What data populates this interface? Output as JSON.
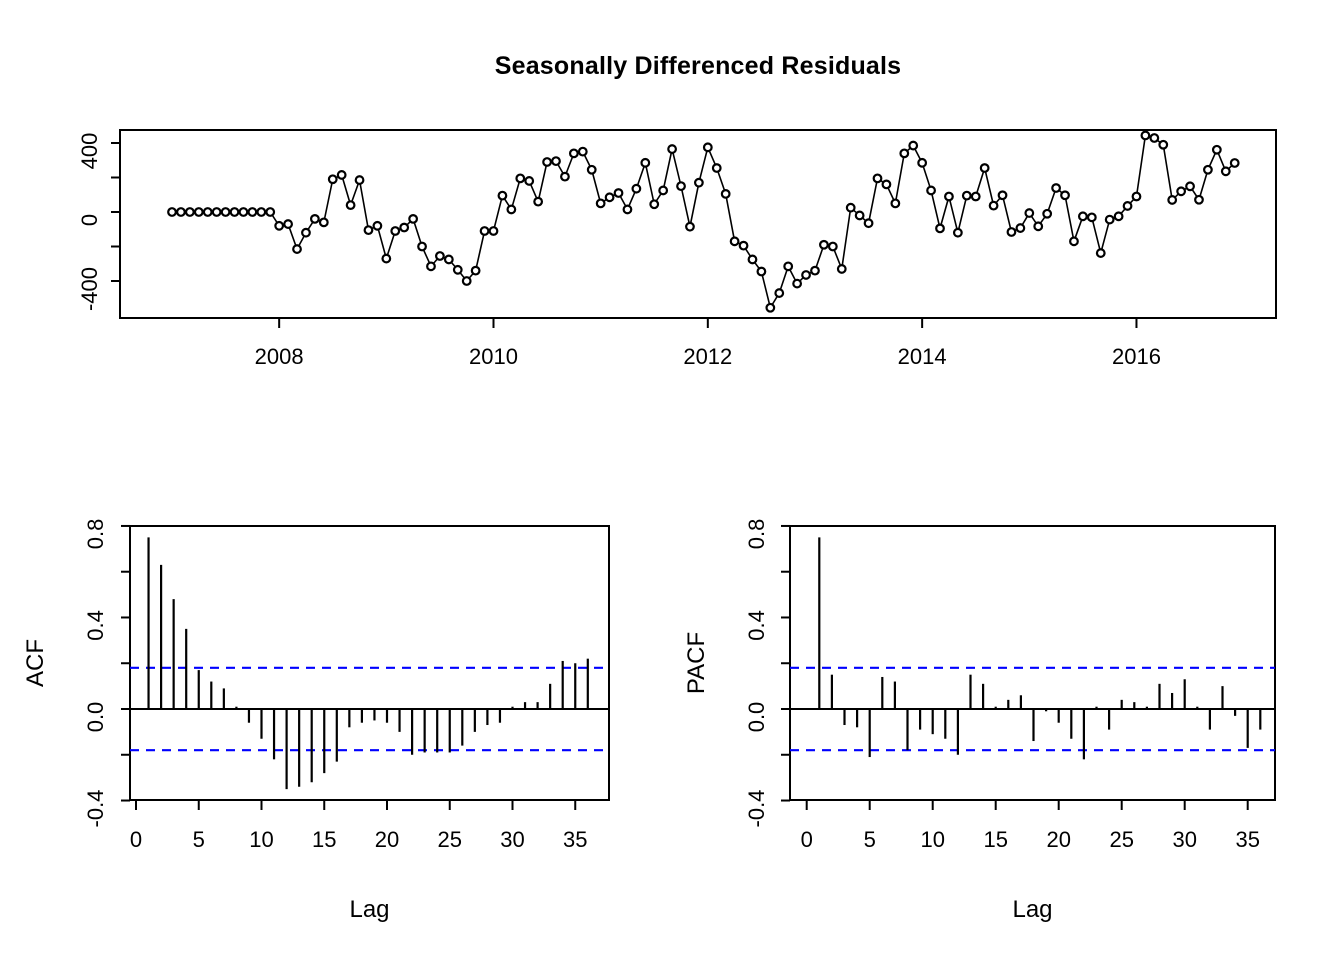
{
  "page": {
    "background": "#ffffff",
    "text_color": "#000000",
    "conf_band_color": "#0000ff"
  },
  "chart_data": [
    {
      "type": "line",
      "name": "residuals-timeseries",
      "title": "Seasonally Differenced Residuals",
      "xlabel": "",
      "ylabel": "",
      "marker": "open-circle",
      "line_color": "#000000",
      "x_start": "2007-01",
      "x_end": "2016-12",
      "x_frequency": "monthly",
      "x_range_years": [
        2007,
        2017
      ],
      "ylim": [
        -600,
        480
      ],
      "x_tick_labels": [
        "2008",
        "2010",
        "2012",
        "2014",
        "2016"
      ],
      "x_tick_months_from_start": [
        12,
        36,
        60,
        84,
        108
      ],
      "y_ticks": [
        -400,
        -200,
        0,
        200,
        400
      ],
      "y_tick_labels": [
        "-400",
        "",
        "0",
        "",
        "400"
      ],
      "values": [
        0,
        0,
        0,
        0,
        0,
        0,
        0,
        0,
        0,
        0,
        0,
        0,
        -80,
        -70,
        -215,
        -120,
        -40,
        -60,
        190,
        215,
        40,
        185,
        -105,
        -80,
        -270,
        -110,
        -90,
        -40,
        -200,
        -315,
        -255,
        -275,
        -335,
        -400,
        -340,
        -110,
        -110,
        95,
        15,
        195,
        180,
        60,
        290,
        295,
        205,
        340,
        350,
        245,
        50,
        85,
        110,
        15,
        135,
        285,
        45,
        125,
        365,
        150,
        -85,
        170,
        375,
        255,
        105,
        -170,
        -195,
        -275,
        -345,
        -555,
        -470,
        -315,
        -415,
        -365,
        -340,
        -190,
        -200,
        -330,
        25,
        -20,
        -65,
        195,
        160,
        50,
        340,
        385,
        285,
        125,
        -95,
        90,
        -120,
        95,
        90,
        255,
        37,
        97,
        -116,
        -93,
        -6,
        -83,
        -10,
        139,
        97,
        -170,
        -25,
        -31,
        -238,
        -44,
        -25,
        35,
        90,
        444,
        429,
        390,
        70,
        120,
        149,
        71,
        245,
        361,
        236,
        284
      ]
    },
    {
      "type": "bar",
      "name": "acf",
      "title": "",
      "xlabel": "Lag",
      "ylabel": "ACF",
      "ylim": [
        -0.4,
        0.8
      ],
      "conf_level": 0.18,
      "conf_style": "dashed",
      "x_ticks": [
        0,
        5,
        10,
        15,
        20,
        25,
        30,
        35
      ],
      "x_tick_labels": [
        "0",
        "5",
        "10",
        "15",
        "20",
        "25",
        "30",
        "35"
      ],
      "y_ticks": [
        -0.4,
        -0.2,
        0,
        0.2,
        0.4,
        0.6,
        0.8
      ],
      "y_tick_labels": [
        "-0.4",
        "",
        "0.0",
        "",
        "0.4",
        "",
        "0.8"
      ],
      "lags_start": 1,
      "values": [
        0.75,
        0.63,
        0.48,
        0.35,
        0.17,
        0.12,
        0.09,
        0.01,
        -0.06,
        -0.13,
        -0.22,
        -0.35,
        -0.34,
        -0.32,
        -0.28,
        -0.23,
        -0.08,
        -0.06,
        -0.05,
        -0.06,
        -0.1,
        -0.2,
        -0.19,
        -0.19,
        -0.19,
        -0.16,
        -0.1,
        -0.07,
        -0.06,
        0.01,
        0.03,
        0.03,
        0.11,
        0.21,
        0.2,
        0.22
      ]
    },
    {
      "type": "bar",
      "name": "pacf",
      "title": "",
      "xlabel": "Lag",
      "ylabel": "PACF",
      "ylim": [
        -0.4,
        0.8
      ],
      "conf_level": 0.18,
      "conf_style": "dashed",
      "x_ticks": [
        0,
        5,
        10,
        15,
        20,
        25,
        30,
        35
      ],
      "x_tick_labels": [
        "0",
        "5",
        "10",
        "15",
        "20",
        "25",
        "30",
        "35"
      ],
      "y_ticks": [
        -0.4,
        -0.2,
        0,
        0.2,
        0.4,
        0.6,
        0.8
      ],
      "y_tick_labels": [
        "-0.4",
        "",
        "0.0",
        "",
        "0.4",
        "",
        "0.8"
      ],
      "lags_start": 1,
      "values": [
        0.75,
        0.15,
        -0.07,
        -0.08,
        -0.21,
        0.14,
        0.12,
        -0.18,
        -0.09,
        -0.11,
        -0.13,
        -0.2,
        0.15,
        0.11,
        0.01,
        0.04,
        0.06,
        -0.14,
        -0.01,
        -0.06,
        -0.13,
        -0.22,
        0.01,
        -0.09,
        0.04,
        0.03,
        0.01,
        0.11,
        0.07,
        0.13,
        0.01,
        -0.09,
        0.1,
        -0.03,
        -0.17,
        -0.09
      ]
    }
  ]
}
